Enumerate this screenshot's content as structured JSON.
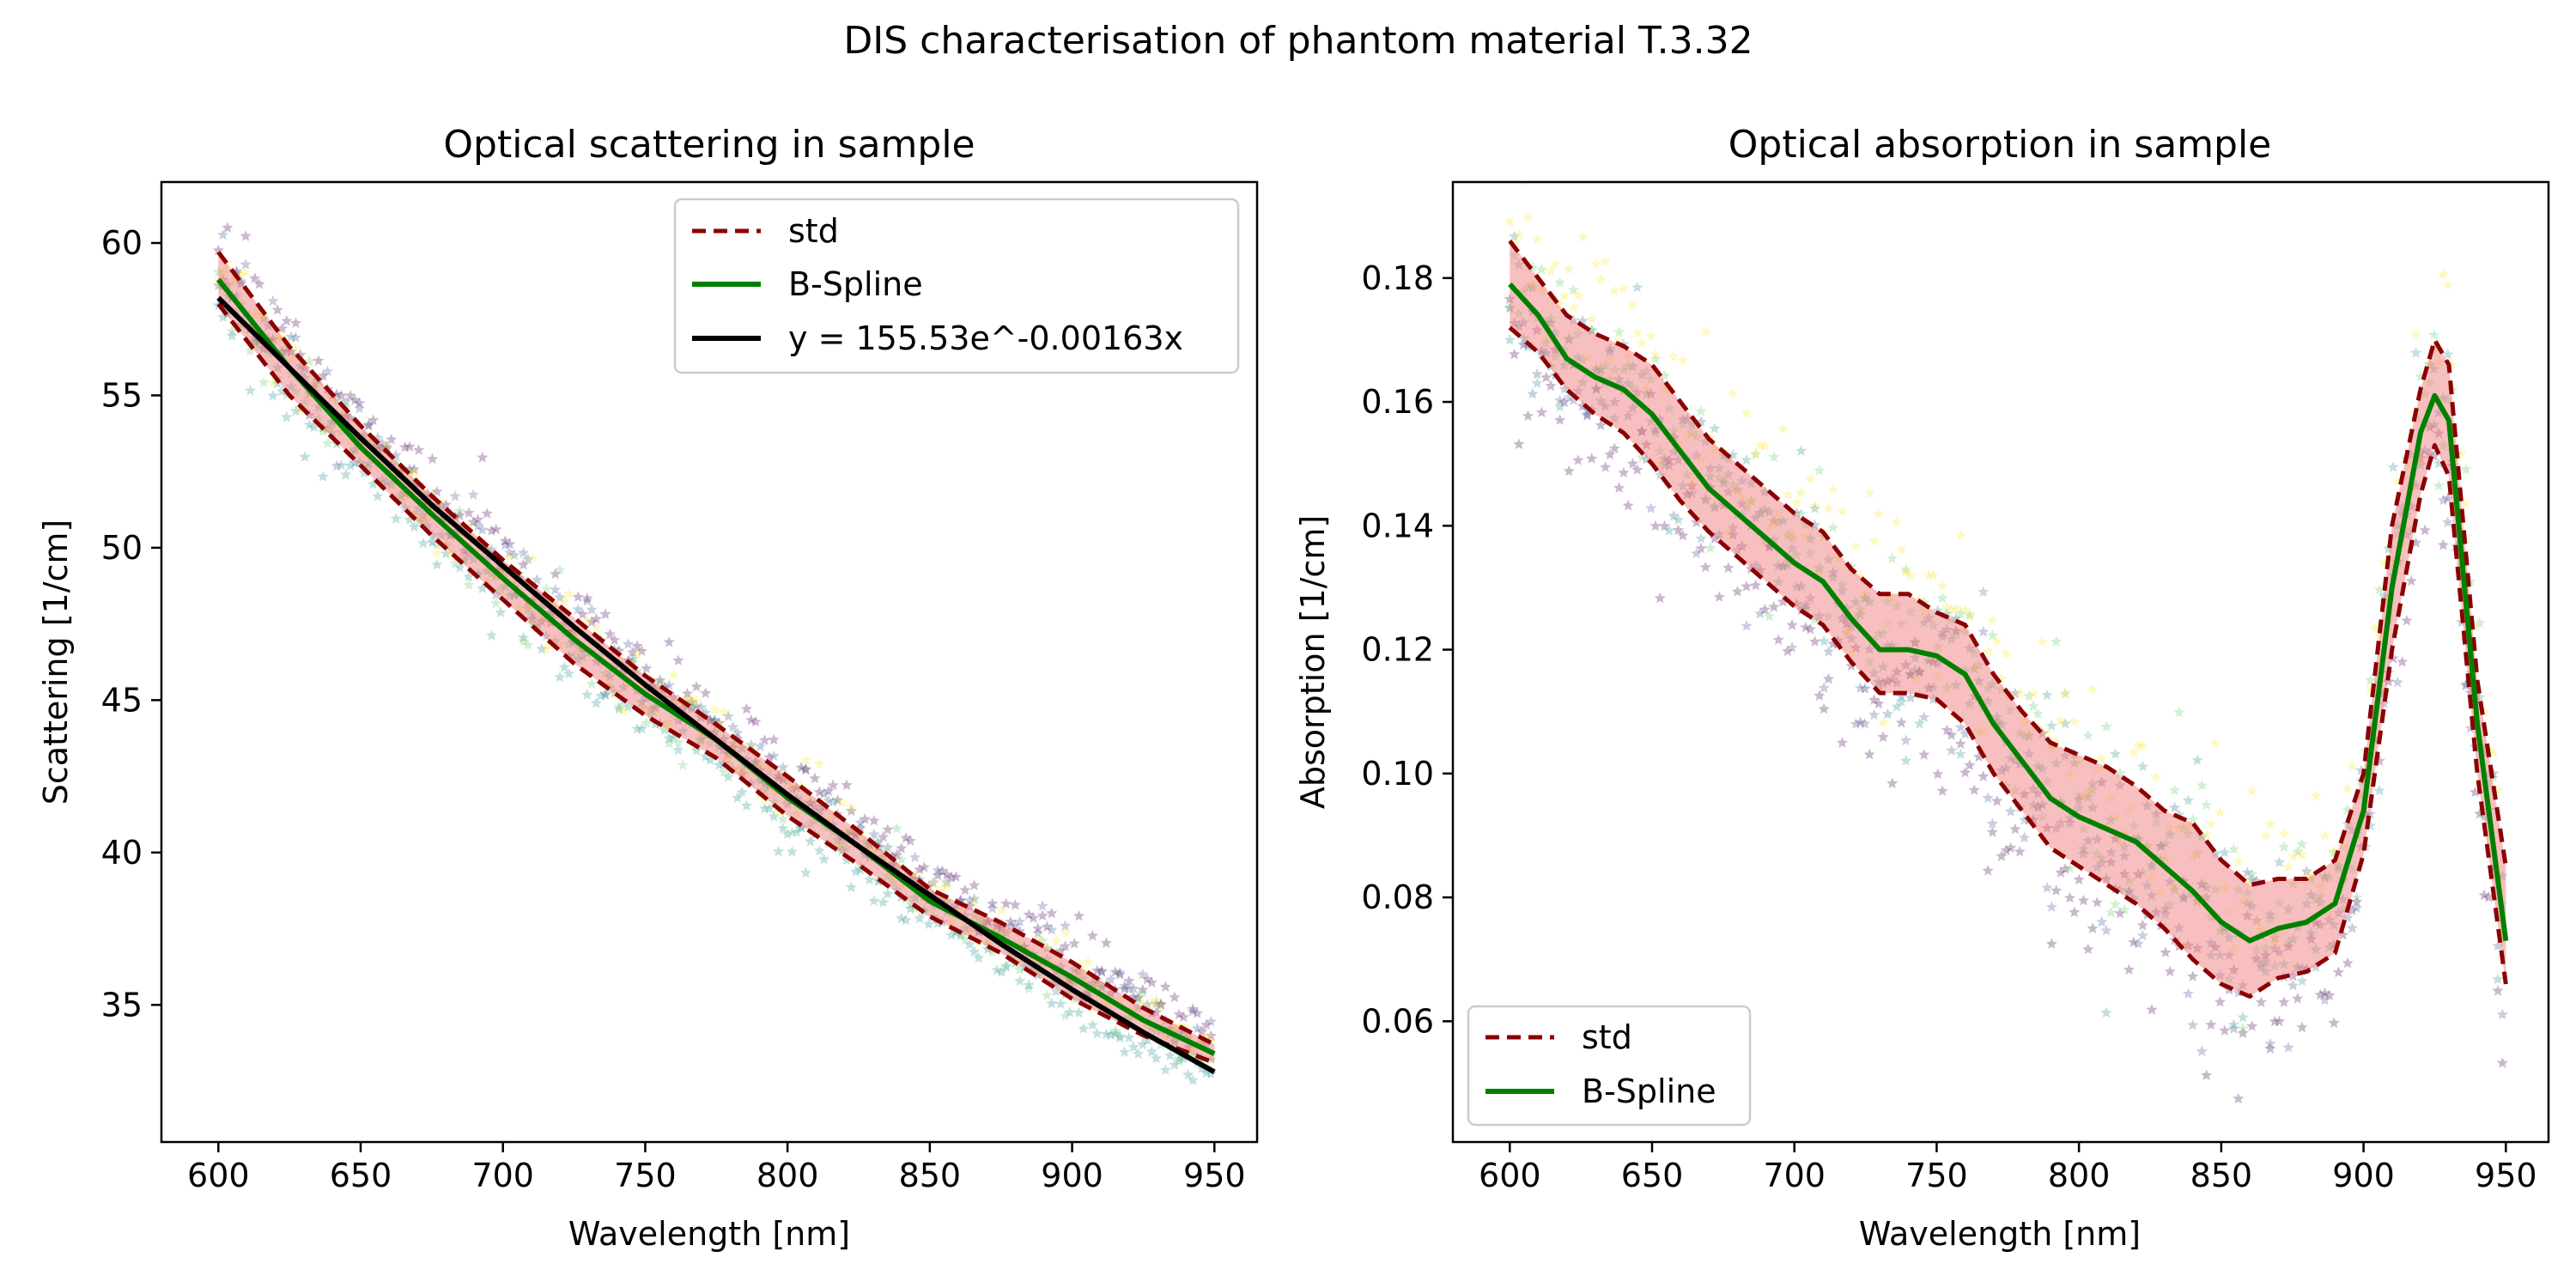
{
  "figure": {
    "suptitle": "DIS characterisation of phantom material T.3.32"
  },
  "colors": {
    "std": "#8b0000",
    "band": "#f08080",
    "spline": "#008000",
    "fit": "#000000",
    "scatter": [
      "#440154",
      "#3b528b",
      "#21908d",
      "#5dc963",
      "#fde725"
    ]
  },
  "chart_data": [
    {
      "type": "line",
      "title": "Optical scattering in sample",
      "xlabel": "Wavelength [nm]",
      "ylabel": "Scattering [1/cm]",
      "xlim": [
        580,
        965
      ],
      "ylim": [
        30.5,
        62
      ],
      "xticks": [
        600,
        650,
        700,
        750,
        800,
        850,
        900,
        950
      ],
      "yticks": [
        35,
        40,
        45,
        50,
        55,
        60
      ],
      "grid": false,
      "legend_position": "top-right",
      "x": [
        600,
        625,
        650,
        675,
        700,
        725,
        750,
        775,
        800,
        825,
        850,
        875,
        900,
        925,
        950
      ],
      "series": [
        {
          "name": "std",
          "role": "std_upper",
          "values": [
            59.7,
            56.6,
            54.0,
            51.7,
            49.6,
            47.7,
            45.8,
            44.2,
            42.5,
            40.7,
            38.8,
            37.7,
            36.4,
            34.9,
            33.7
          ]
        },
        {
          "name": "std",
          "role": "std_lower",
          "values": [
            58.0,
            55.0,
            52.7,
            50.4,
            48.3,
            46.2,
            44.5,
            43.1,
            41.2,
            39.6,
            37.9,
            36.7,
            35.2,
            34.0,
            33.1
          ]
        },
        {
          "name": "B-Spline",
          "role": "spline",
          "values": [
            58.8,
            55.9,
            53.3,
            51.1,
            49.0,
            47.0,
            45.2,
            43.7,
            41.8,
            40.2,
            38.4,
            37.2,
            35.9,
            34.5,
            33.4
          ]
        },
        {
          "name": "y = 155.53e^-0.00163x",
          "role": "fit",
          "values": [
            58.2,
            55.9,
            53.6,
            51.4,
            49.4,
            47.4,
            45.5,
            43.7,
            41.9,
            40.2,
            38.6,
            37.0,
            35.5,
            34.1,
            32.8
          ]
        }
      ],
      "scatter_sets": [
        {
          "offset": 0.8
        },
        {
          "offset": 0.35
        },
        {
          "offset": -0.75
        },
        {
          "offset": -0.2
        },
        {
          "offset": 0.2
        }
      ]
    },
    {
      "type": "line",
      "title": "Optical absorption in sample",
      "xlabel": "Wavelength [nm]",
      "ylabel": "Absorption [1/cm]",
      "xlim": [
        580,
        965
      ],
      "ylim": [
        0.0405,
        0.1955
      ],
      "xticks": [
        600,
        650,
        700,
        750,
        800,
        850,
        900,
        950
      ],
      "yticks": [
        0.06,
        0.08,
        0.1,
        0.12,
        0.14,
        0.16,
        0.18
      ],
      "ytick_labels": [
        "0.06",
        "0.08",
        "0.10",
        "0.12",
        "0.14",
        "0.16",
        "0.18"
      ],
      "grid": false,
      "legend_position": "bottom-left",
      "x": [
        600,
        610,
        620,
        630,
        640,
        650,
        660,
        670,
        680,
        690,
        700,
        710,
        720,
        730,
        740,
        750,
        760,
        770,
        780,
        790,
        800,
        810,
        820,
        830,
        840,
        850,
        860,
        870,
        880,
        890,
        900,
        910,
        920,
        925,
        930,
        940,
        950
      ],
      "series": [
        {
          "name": "std",
          "role": "std_upper",
          "values": [
            0.186,
            0.18,
            0.174,
            0.171,
            0.169,
            0.166,
            0.16,
            0.154,
            0.15,
            0.146,
            0.142,
            0.139,
            0.133,
            0.129,
            0.129,
            0.126,
            0.124,
            0.116,
            0.11,
            0.105,
            0.103,
            0.101,
            0.098,
            0.094,
            0.092,
            0.086,
            0.082,
            0.083,
            0.083,
            0.086,
            0.1,
            0.14,
            0.162,
            0.17,
            0.166,
            0.115,
            0.085
          ]
        },
        {
          "name": "std",
          "role": "std_lower",
          "values": [
            0.172,
            0.168,
            0.162,
            0.158,
            0.155,
            0.15,
            0.144,
            0.139,
            0.135,
            0.131,
            0.127,
            0.124,
            0.118,
            0.113,
            0.113,
            0.112,
            0.108,
            0.1,
            0.094,
            0.088,
            0.085,
            0.082,
            0.079,
            0.075,
            0.07,
            0.066,
            0.064,
            0.067,
            0.068,
            0.071,
            0.087,
            0.12,
            0.145,
            0.153,
            0.148,
            0.1,
            0.066
          ]
        },
        {
          "name": "B-Spline",
          "role": "spline",
          "values": [
            0.179,
            0.174,
            0.167,
            0.164,
            0.162,
            0.158,
            0.152,
            0.146,
            0.142,
            0.138,
            0.134,
            0.131,
            0.125,
            0.12,
            0.12,
            0.119,
            0.116,
            0.108,
            0.102,
            0.096,
            0.093,
            0.091,
            0.089,
            0.085,
            0.081,
            0.076,
            0.073,
            0.075,
            0.076,
            0.079,
            0.094,
            0.13,
            0.155,
            0.161,
            0.157,
            0.108,
            0.073
          ]
        }
      ],
      "scatter_sets": [
        {
          "offset": -0.01
        },
        {
          "offset": -0.005
        },
        {
          "offset": 0.0
        },
        {
          "offset": 0.004
        },
        {
          "offset": 0.009
        }
      ]
    }
  ]
}
